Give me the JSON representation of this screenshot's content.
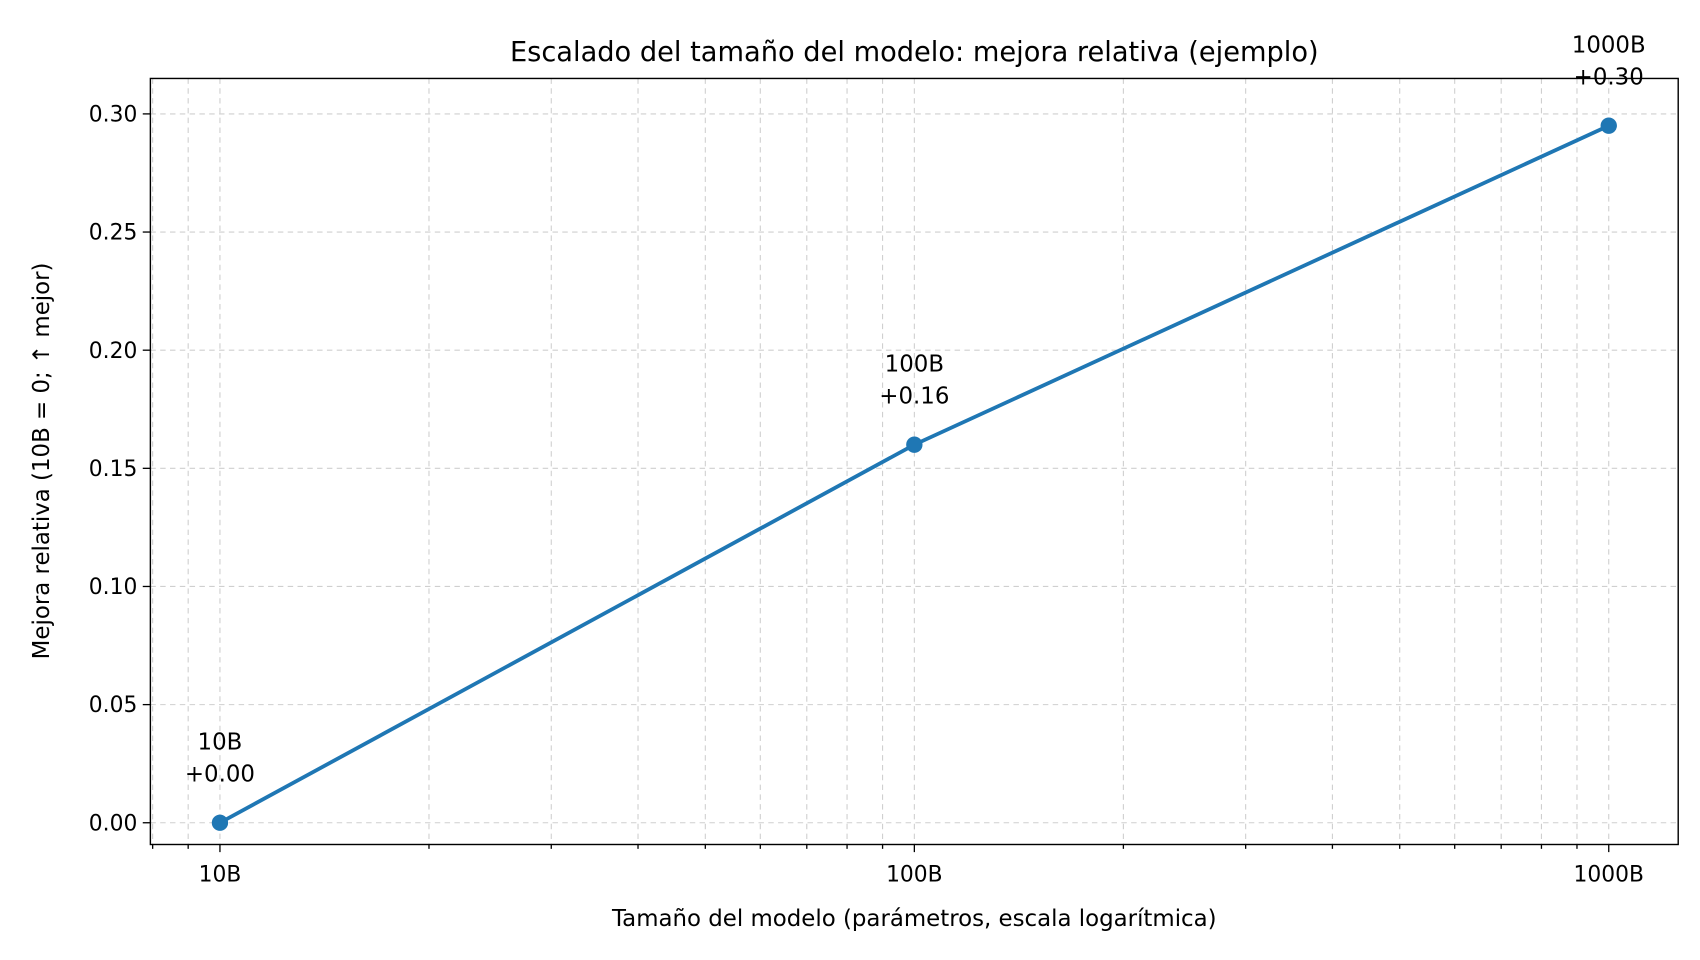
{
  "chart_data": {
    "type": "line",
    "title": "Escalado del tamaño del modelo: mejora relativa (ejemplo)",
    "xlabel": "Tamaño del modelo (parámetros, escala logarítmica)",
    "ylabel": "Mejora relativa (10B = 0; ↑ mejor)",
    "xscale": "log",
    "xlim": [
      7.94,
      1259
    ],
    "ylim": [
      -0.0092,
      0.315
    ],
    "grid": true,
    "x": [
      10,
      100,
      1000
    ],
    "x_tick_values": [
      10,
      100,
      1000
    ],
    "x_tick_labels": [
      "10B",
      "100B",
      "1000B"
    ],
    "y_ticks": [
      0.0,
      0.05,
      0.1,
      0.15,
      0.2,
      0.25,
      0.3
    ],
    "y_tick_labels": [
      "0.00",
      "0.05",
      "0.10",
      "0.15",
      "0.20",
      "0.25",
      "0.30"
    ],
    "series": [
      {
        "name": "Mejora relativa",
        "color": "#1f77b4",
        "values": [
          0.0,
          0.16,
          0.295
        ]
      }
    ],
    "annotations": [
      {
        "line1": "10B",
        "line2": "+0.00"
      },
      {
        "line1": "100B",
        "line2": "+0.16"
      },
      {
        "line1": "1000B",
        "line2": "+0.30"
      }
    ]
  }
}
